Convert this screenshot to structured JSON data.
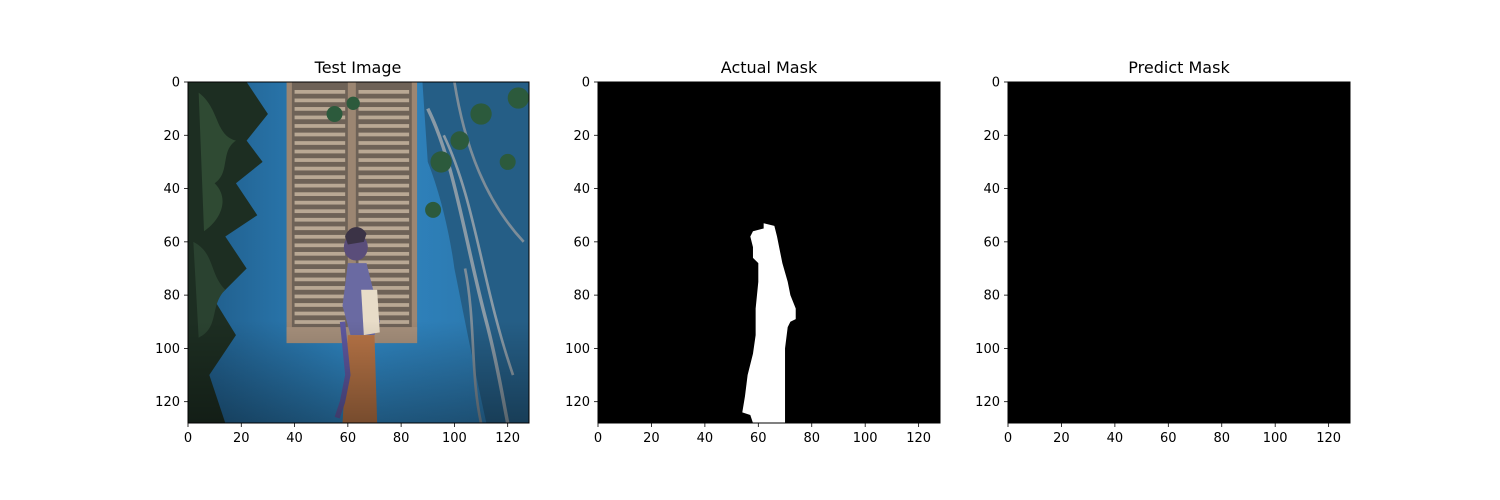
{
  "chart_data": [
    {
      "type": "image",
      "title": "Test Image",
      "content": "photo",
      "xlim": [
        0,
        128
      ],
      "ylim": [
        128,
        0
      ],
      "xticks": [
        0,
        20,
        40,
        60,
        80,
        100,
        120
      ],
      "yticks": [
        0,
        20,
        40,
        60,
        80,
        100,
        120
      ]
    },
    {
      "type": "image",
      "title": "Actual Mask",
      "content": "mask",
      "xlim": [
        0,
        128
      ],
      "ylim": [
        128,
        0
      ],
      "xticks": [
        0,
        20,
        40,
        60,
        80,
        100,
        120
      ],
      "yticks": [
        0,
        20,
        40,
        60,
        80,
        100,
        120
      ],
      "mask_outline": [
        [
          62,
          53
        ],
        [
          66,
          54
        ],
        [
          67,
          58
        ],
        [
          68,
          63
        ],
        [
          69,
          68
        ],
        [
          71,
          75
        ],
        [
          72,
          80
        ],
        [
          74,
          85
        ],
        [
          74,
          89
        ],
        [
          72,
          90
        ],
        [
          71,
          92
        ],
        [
          70,
          100
        ],
        [
          70,
          110
        ],
        [
          70,
          120
        ],
        [
          70,
          128
        ],
        [
          58,
          128
        ],
        [
          57,
          125
        ],
        [
          54,
          124
        ],
        [
          55,
          118
        ],
        [
          56,
          110
        ],
        [
          58,
          102
        ],
        [
          59,
          95
        ],
        [
          59,
          85
        ],
        [
          60,
          75
        ],
        [
          60,
          68
        ],
        [
          58,
          66
        ],
        [
          58,
          62
        ],
        [
          57,
          58
        ],
        [
          58,
          56
        ],
        [
          62,
          55
        ]
      ]
    },
    {
      "type": "image",
      "title": "Predict Mask",
      "content": "empty-mask",
      "xlim": [
        0,
        128
      ],
      "ylim": [
        128,
        0
      ],
      "xticks": [
        0,
        20,
        40,
        60,
        80,
        100,
        120
      ],
      "yticks": [
        0,
        20,
        40,
        60,
        80,
        100,
        120
      ]
    }
  ]
}
